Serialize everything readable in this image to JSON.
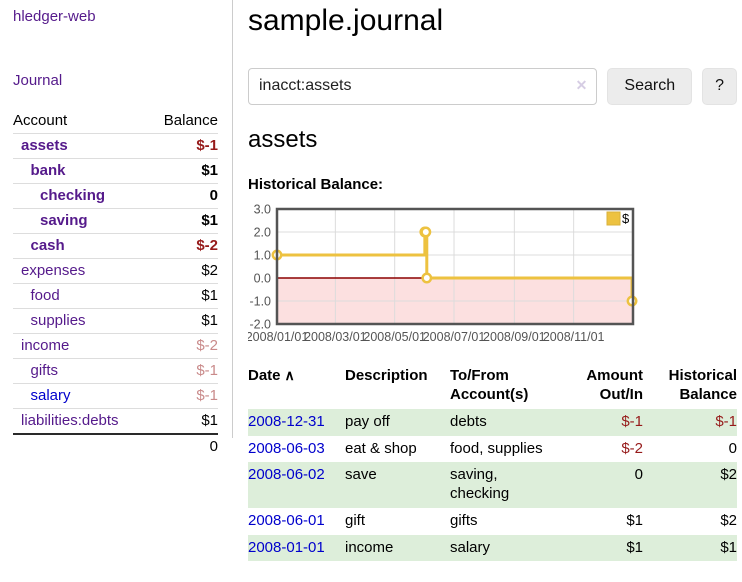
{
  "app": {
    "brand": "hledger-web",
    "nav_journal": "Journal"
  },
  "sidebar": {
    "table": {
      "col_account": "Account",
      "col_balance": "Balance",
      "accounts": [
        {
          "label": "assets",
          "balance": "$-1",
          "indent": 1,
          "bold": true,
          "balance_style": "negative",
          "link": "purple"
        },
        {
          "label": "bank",
          "balance": "$1",
          "indent": 2,
          "bold": true,
          "balance_style": "plain",
          "link": "purple"
        },
        {
          "label": "checking",
          "balance": "0",
          "indent": 3,
          "bold": true,
          "balance_style": "plain",
          "link": "purple"
        },
        {
          "label": "saving",
          "balance": "$1",
          "indent": 3,
          "bold": true,
          "balance_style": "plain",
          "link": "purple"
        },
        {
          "label": "cash",
          "balance": "$-2",
          "indent": 2,
          "bold": true,
          "balance_style": "negative",
          "link": "purple"
        },
        {
          "label": "expenses",
          "balance": "$2",
          "indent": 1,
          "bold": false,
          "balance_style": "plain",
          "link": "purple"
        },
        {
          "label": "food",
          "balance": "$1",
          "indent": 2,
          "bold": false,
          "balance_style": "plain",
          "link": "purple"
        },
        {
          "label": "supplies",
          "balance": "$1",
          "indent": 2,
          "bold": false,
          "balance_style": "plain",
          "link": "purple"
        },
        {
          "label": "income",
          "balance": "$-2",
          "indent": 1,
          "bold": false,
          "balance_style": "negative-faded",
          "link": "purple"
        },
        {
          "label": "gifts",
          "balance": "$-1",
          "indent": 2,
          "bold": false,
          "balance_style": "negative-faded",
          "link": "purple"
        },
        {
          "label": "salary",
          "balance": "$-1",
          "indent": 2,
          "bold": false,
          "balance_style": "negative-faded",
          "link": "blue"
        },
        {
          "label": "liabilities:debts",
          "balance": "$1",
          "indent": 1,
          "bold": false,
          "balance_style": "plain",
          "link": "purple"
        }
      ],
      "total": "0"
    }
  },
  "main": {
    "title": "sample.journal",
    "search": {
      "query": "inacct:assets",
      "clear_icon": "✕",
      "button": "Search",
      "help_button": "?"
    },
    "account_heading": "assets",
    "chart_label": "Historical Balance:",
    "register": {
      "headers": {
        "date": "Date",
        "sort_icon": "∧",
        "description": "Description",
        "accounts": "To/From Account(s)",
        "amount": "Amount Out/In",
        "balance": "Historical Balance"
      },
      "rows": [
        {
          "date": "2008-12-31",
          "description": "pay off",
          "accounts": "debts",
          "amount": "$-1",
          "amount_negative": true,
          "balance": "$-1",
          "balance_negative": true
        },
        {
          "date": "2008-06-03",
          "description": "eat & shop",
          "accounts": "food, supplies",
          "amount": "$-2",
          "amount_negative": true,
          "balance": "0",
          "balance_negative": false
        },
        {
          "date": "2008-06-02",
          "description": "save",
          "accounts": "saving, checking",
          "amount": "0",
          "amount_negative": false,
          "balance": "$2",
          "balance_negative": false
        },
        {
          "date": "2008-06-01",
          "description": "gift",
          "accounts": "gifts",
          "amount": "$1",
          "amount_negative": false,
          "balance": "$2",
          "balance_negative": false
        },
        {
          "date": "2008-01-01",
          "description": "income",
          "accounts": "salary",
          "amount": "$1",
          "amount_negative": false,
          "balance": "$1",
          "balance_negative": false
        }
      ]
    }
  },
  "chart_data": {
    "type": "line",
    "title": "Historical Balance:",
    "series": [
      {
        "name": "$",
        "color": "#edc240",
        "steps": true,
        "points": [
          [
            "2008-01-01",
            1
          ],
          [
            "2008-06-01",
            2
          ],
          [
            "2008-06-02",
            2
          ],
          [
            "2008-06-03",
            0
          ],
          [
            "2008-12-31",
            -1
          ]
        ]
      }
    ],
    "x_range": [
      "2008-01-01",
      "2009-01-01"
    ],
    "x_ticks": [
      "2008/01/01",
      "2008/03/01",
      "2008/05/01",
      "2008/07/01",
      "2008/09/01",
      "2008/11/01"
    ],
    "y_ticks": [
      "3.0",
      "2.0",
      "1.0",
      "0.0",
      "-1.0",
      "-2.0"
    ],
    "ylim": [
      -2,
      3
    ],
    "grid": true,
    "legend": {
      "label": "$",
      "position": "top-right"
    },
    "negative_region_color": "#fce0e0",
    "zero_line_color": "#8b0000"
  },
  "colors": {
    "link_visited_purple": "#551a8b",
    "link_blue": "#0000cc",
    "negative_red": "#961a1a",
    "negative_faded_red": "#c98a8a",
    "row_stripe_green": "#ddeeda",
    "chart_line_gold": "#edc240",
    "chart_border_gray": "#545454",
    "button_gray": "#ececec"
  }
}
